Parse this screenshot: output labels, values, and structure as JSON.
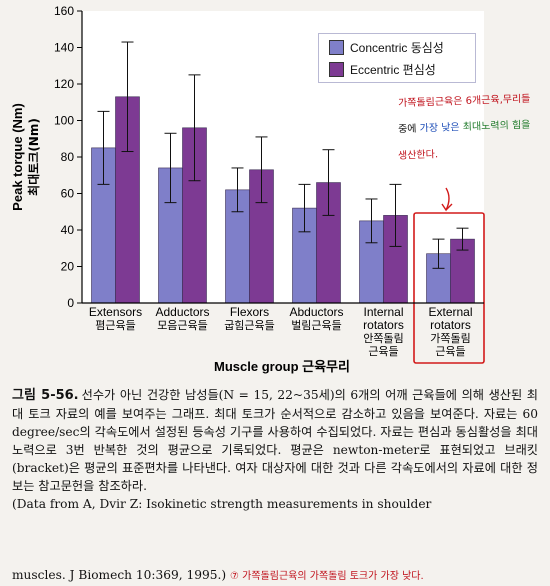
{
  "chart_data": {
    "type": "bar",
    "ylabel": "Peak torque (Nm)",
    "ylabel_ko": "최대토크(Nm)",
    "xlabel": "Muscle group 근육무리",
    "ylim": [
      0,
      160
    ],
    "yticks": [
      0,
      20,
      40,
      60,
      80,
      100,
      120,
      140,
      160
    ],
    "grid": false,
    "legend_position": "top-right",
    "categories": [
      {
        "en": "Extensors",
        "ko": "폄근육들"
      },
      {
        "en": "Adductors",
        "ko": "모음근육들"
      },
      {
        "en": "Flexors",
        "ko": "굽힘근육들"
      },
      {
        "en": "Abductors",
        "ko": "벌림근육들"
      },
      {
        "en": "Internal rotators",
        "ko": "안쪽돌림 근육들"
      },
      {
        "en": "External rotators",
        "ko": "가쪽돌림 근육들"
      }
    ],
    "series": [
      {
        "name": "Concentric 동심성",
        "color": "#7f7fc9",
        "values": [
          85,
          74,
          62,
          52,
          45,
          27
        ],
        "error": [
          20,
          19,
          12,
          13,
          12,
          8
        ]
      },
      {
        "name": "Eccentric 편심성",
        "color": "#7d3a93",
        "values": [
          113,
          96,
          73,
          66,
          48,
          35
        ],
        "error": [
          30,
          29,
          18,
          18,
          17,
          6
        ]
      }
    ],
    "colors": {
      "axis_bg": "#ffffff",
      "concentric": "#7f7fc9",
      "eccentric": "#7d3a93",
      "annotation_red": "#c0121c"
    }
  },
  "annotation": {
    "line1_red": "가쪽돌림근육은",
    "line1_red_b": "6개근육,무리들",
    "line2_a": "중에",
    "line2_blue": "가장 낮은",
    "line2_green": "최대노력의 힘을",
    "line3_red": "생산한다."
  },
  "caption": {
    "label": "그림 5-56.",
    "body": "선수가 아닌 건강한 남성들(N = 15, 22~35세)의 6개의 어깨 근육들에 의해 생산된 최대 토크 자료의 예를 보여주는 그래프. 최대 토크가 순서적으로 감소하고 있음을 보여준다. 자료는 60 degree/sec의 각속도에서 설정된 등속성 기구를 사용하여 수집되었다. 자료는 편심과 동심활성을 최대 노력으로 3번 반복한 것의 평균으로 기록되었다. 평균은 newton-meter로 표현되었고 브래킷(bracket)은 평균의 표준편차를 나타낸다. 여자 대상자에 대한 것과 다른 각속도에서의 자료에 대한 정보는 참고문헌을 참조하라.",
    "source": "(Data from A, Dvir Z: Isokinetic strength measurements in shoulder",
    "last_line": "muscles. J Biomech 10:369, 1995.)",
    "last_note": "⑦ 가쪽돌림근육의 가쪽돌림 토크가 가장 낮다."
  }
}
